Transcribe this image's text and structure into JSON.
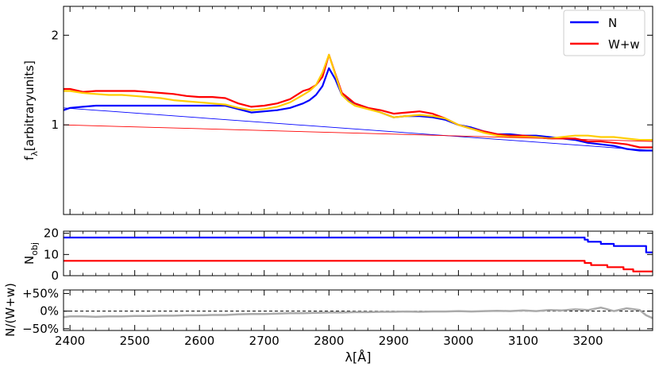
{
  "chart_data": [
    {
      "type": "line",
      "ylabel_main": "f",
      "ylabel_sub": "λ",
      "ylabel_rest": "[arbitraryunits]",
      "xlim": [
        2390,
        3300
      ],
      "ylim": [
        0.5,
        2.5
      ],
      "yscale": "log",
      "yticks": [
        {
          "value": 1,
          "label": "1"
        },
        {
          "value": 2,
          "label": "2"
        }
      ],
      "legend": {
        "placement": "top-right"
      },
      "series": [
        {
          "name": "N",
          "color": "#0000ff",
          "x": [
            2390,
            2400,
            2420,
            2440,
            2460,
            2480,
            2500,
            2520,
            2540,
            2560,
            2580,
            2600,
            2620,
            2640,
            2660,
            2680,
            2700,
            2720,
            2740,
            2760,
            2770,
            2780,
            2790,
            2800,
            2810,
            2820,
            2830,
            2840,
            2860,
            2880,
            2900,
            2920,
            2940,
            2960,
            2980,
            3000,
            3020,
            3040,
            3060,
            3080,
            3100,
            3120,
            3140,
            3160,
            3180,
            3200,
            3220,
            3240,
            3260,
            3280,
            3300
          ],
          "y": [
            1.12,
            1.14,
            1.15,
            1.16,
            1.16,
            1.16,
            1.16,
            1.16,
            1.16,
            1.16,
            1.16,
            1.16,
            1.16,
            1.16,
            1.13,
            1.1,
            1.11,
            1.12,
            1.14,
            1.18,
            1.21,
            1.26,
            1.35,
            1.55,
            1.42,
            1.26,
            1.21,
            1.18,
            1.14,
            1.1,
            1.06,
            1.07,
            1.07,
            1.06,
            1.04,
            1.0,
            0.98,
            0.95,
            0.93,
            0.93,
            0.92,
            0.92,
            0.91,
            0.9,
            0.89,
            0.87,
            0.86,
            0.85,
            0.83,
            0.82,
            0.82
          ]
        },
        {
          "name": "W+w",
          "color": "#ff0000",
          "x": [
            2390,
            2400,
            2420,
            2440,
            2460,
            2480,
            2500,
            2520,
            2540,
            2560,
            2580,
            2600,
            2620,
            2640,
            2660,
            2680,
            2700,
            2720,
            2740,
            2760,
            2770,
            2780,
            2790,
            2800,
            2810,
            2820,
            2830,
            2840,
            2860,
            2880,
            2900,
            2920,
            2940,
            2960,
            2980,
            3000,
            3020,
            3040,
            3060,
            3080,
            3100,
            3120,
            3140,
            3160,
            3180,
            3200,
            3220,
            3240,
            3260,
            3280,
            3300
          ],
          "y": [
            1.32,
            1.32,
            1.29,
            1.3,
            1.3,
            1.3,
            1.3,
            1.29,
            1.28,
            1.27,
            1.25,
            1.24,
            1.24,
            1.23,
            1.18,
            1.15,
            1.16,
            1.18,
            1.22,
            1.3,
            1.32,
            1.36,
            1.45,
            1.72,
            1.48,
            1.28,
            1.23,
            1.18,
            1.14,
            1.12,
            1.09,
            1.1,
            1.11,
            1.09,
            1.05,
            1.0,
            0.97,
            0.95,
            0.93,
            0.92,
            0.92,
            0.91,
            0.9,
            0.9,
            0.9,
            0.88,
            0.88,
            0.87,
            0.86,
            0.84,
            0.84
          ]
        },
        {
          "name": "",
          "color": "#ffcc00",
          "x": [
            2390,
            2400,
            2420,
            2440,
            2460,
            2480,
            2500,
            2520,
            2540,
            2560,
            2580,
            2600,
            2620,
            2640,
            2660,
            2680,
            2700,
            2720,
            2740,
            2760,
            2770,
            2780,
            2790,
            2800,
            2810,
            2820,
            2830,
            2840,
            2860,
            2880,
            2900,
            2920,
            2940,
            2960,
            2980,
            3000,
            3020,
            3040,
            3060,
            3080,
            3100,
            3120,
            3140,
            3160,
            3180,
            3200,
            3220,
            3240,
            3260,
            3280,
            3300
          ],
          "y": [
            1.3,
            1.3,
            1.28,
            1.27,
            1.26,
            1.26,
            1.25,
            1.24,
            1.23,
            1.21,
            1.2,
            1.19,
            1.18,
            1.17,
            1.14,
            1.12,
            1.13,
            1.15,
            1.19,
            1.26,
            1.3,
            1.36,
            1.5,
            1.72,
            1.47,
            1.26,
            1.2,
            1.16,
            1.13,
            1.1,
            1.06,
            1.07,
            1.08,
            1.07,
            1.05,
            1.0,
            0.97,
            0.94,
            0.92,
            0.91,
            0.91,
            0.91,
            0.9,
            0.91,
            0.92,
            0.92,
            0.91,
            0.91,
            0.9,
            0.89,
            0.89
          ]
        },
        {
          "name": "",
          "color": "#0000ff",
          "x": [
            2390,
            3300
          ],
          "y": [
            1.14,
            0.82
          ]
        },
        {
          "name": "",
          "color": "#ff0000",
          "x": [
            2390,
            3300
          ],
          "y": [
            1.0,
            0.88
          ]
        }
      ]
    },
    {
      "type": "line",
      "ylabel_main": "N",
      "ylabel_sub": "obj",
      "xlim": [
        2390,
        3300
      ],
      "ylim": [
        0,
        21
      ],
      "yticks": [
        {
          "value": 0,
          "label": "0"
        },
        {
          "value": 10,
          "label": "10"
        },
        {
          "value": 20,
          "label": "20"
        }
      ],
      "series": [
        {
          "name": "N",
          "color": "#0000ff",
          "x": [
            2390,
            3195,
            3195,
            3200,
            3200,
            3220,
            3220,
            3240,
            3240,
            3290,
            3290,
            3300
          ],
          "y": [
            18,
            18,
            17,
            17,
            16,
            16,
            15,
            15,
            14,
            14,
            11,
            11
          ]
        },
        {
          "name": "W+w",
          "color": "#ff0000",
          "x": [
            2390,
            3195,
            3195,
            3205,
            3205,
            3230,
            3230,
            3255,
            3255,
            3270,
            3270,
            3300
          ],
          "y": [
            7,
            7,
            6,
            6,
            5,
            5,
            4,
            4,
            3,
            3,
            2,
            2
          ]
        }
      ]
    },
    {
      "type": "line",
      "ylabel": "N/(W+w)",
      "xlabel": "λ[Å]",
      "xlim": [
        2390,
        3300
      ],
      "ylim": [
        -0.55,
        0.6
      ],
      "yticks": [
        {
          "value": 0.5,
          "label": "+50%"
        },
        {
          "value": 0,
          "label": "0%"
        },
        {
          "value": -0.5,
          "label": "−50%"
        }
      ],
      "xticks": [
        {
          "value": 2400,
          "label": "2400"
        },
        {
          "value": 2500,
          "label": "2500"
        },
        {
          "value": 2600,
          "label": "2600"
        },
        {
          "value": 2700,
          "label": "2700"
        },
        {
          "value": 2800,
          "label": "2800"
        },
        {
          "value": 2900,
          "label": "2900"
        },
        {
          "value": 3000,
          "label": "3000"
        },
        {
          "value": 3100,
          "label": "3100"
        },
        {
          "value": 3200,
          "label": "3200"
        }
      ],
      "reference_line": {
        "y": 0,
        "style": "dashed"
      },
      "series": [
        {
          "name": "",
          "color": "#aaaaaa",
          "x": [
            2390,
            2400,
            2420,
            2440,
            2460,
            2480,
            2500,
            2520,
            2540,
            2560,
            2580,
            2600,
            2620,
            2640,
            2660,
            2680,
            2700,
            2720,
            2740,
            2760,
            2780,
            2800,
            2820,
            2840,
            2860,
            2880,
            2900,
            2920,
            2940,
            2960,
            2980,
            3000,
            3020,
            3040,
            3060,
            3080,
            3100,
            3120,
            3140,
            3160,
            3180,
            3200,
            3220,
            3240,
            3260,
            3280,
            3290,
            3300
          ],
          "y": [
            -0.17,
            -0.15,
            -0.15,
            -0.16,
            -0.15,
            -0.15,
            -0.14,
            -0.14,
            -0.13,
            -0.13,
            -0.12,
            -0.12,
            -0.11,
            -0.11,
            -0.09,
            -0.08,
            -0.08,
            -0.07,
            -0.06,
            -0.06,
            -0.05,
            -0.04,
            -0.04,
            -0.03,
            -0.03,
            -0.02,
            -0.02,
            -0.01,
            -0.02,
            -0.01,
            -0.01,
            0.0,
            -0.01,
            0.0,
            0.01,
            0.0,
            0.02,
            0.0,
            0.03,
            0.02,
            0.05,
            0.03,
            0.1,
            0.0,
            0.08,
            0.03,
            -0.12,
            -0.2
          ]
        }
      ]
    }
  ]
}
